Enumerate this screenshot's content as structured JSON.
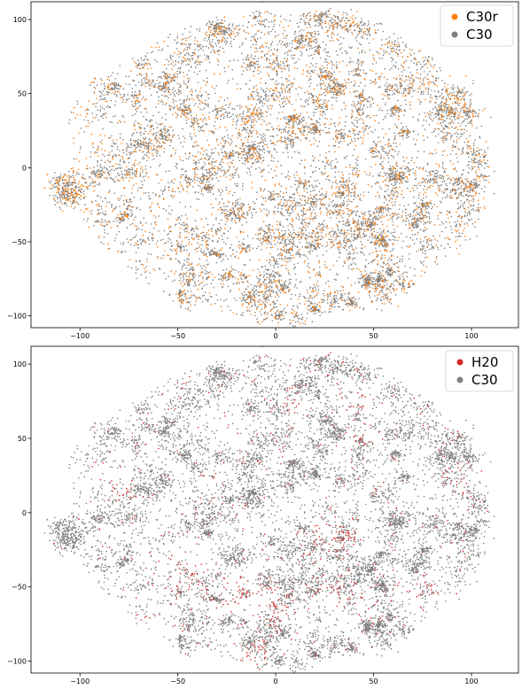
{
  "chart_data": [
    {
      "type": "scatter",
      "title": "",
      "xlabel": "",
      "ylabel": "",
      "xlim": [
        -125,
        124
      ],
      "ylim": [
        -108,
        112
      ],
      "xticks": [
        -100,
        -50,
        0,
        50,
        100
      ],
      "yticks": [
        -100,
        -50,
        0,
        50,
        100
      ],
      "xtick_labels": [
        "−100",
        "−50",
        "0",
        "50",
        "100"
      ],
      "ytick_labels": [
        "−100",
        "−50",
        "0",
        "50",
        "100"
      ],
      "grid": false,
      "legend_position": "top-right",
      "series": [
        {
          "name": "C30r",
          "color": "#ff7f0e"
        },
        {
          "name": "C30",
          "color": "#7f7f7f"
        }
      ]
    },
    {
      "type": "scatter",
      "title": "",
      "xlabel": "",
      "ylabel": "",
      "xlim": [
        -125,
        124
      ],
      "ylim": [
        -108,
        112
      ],
      "xticks": [
        -100,
        -50,
        0,
        50,
        100
      ],
      "yticks": [
        -100,
        -50,
        0,
        50,
        100
      ],
      "xtick_labels": [
        "−100",
        "−50",
        "0",
        "50",
        "100"
      ],
      "ytick_labels": [
        "−100",
        "−50",
        "0",
        "50",
        "100"
      ],
      "grid": false,
      "legend_position": "top-right",
      "series": [
        {
          "name": "H20",
          "color": "#d62728"
        },
        {
          "name": "C30",
          "color": "#7f7f7f"
        }
      ]
    }
  ]
}
